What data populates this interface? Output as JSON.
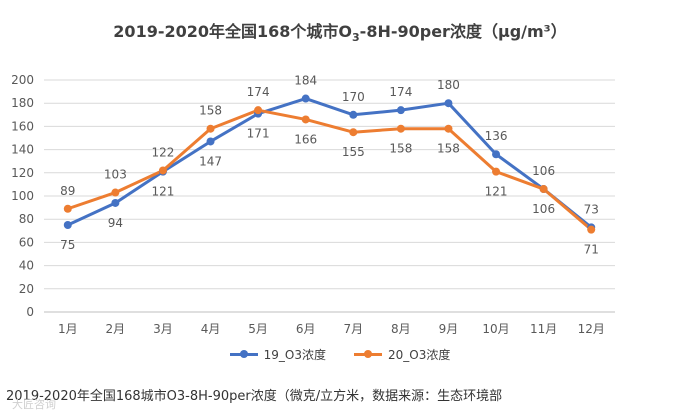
{
  "colors": {
    "series1": "#4472C4",
    "series2": "#ED7D31",
    "grid": "#D9D9D9",
    "axis": "#BFBFBF",
    "text": "#595959"
  },
  "chart_data": {
    "type": "line",
    "title": "2019-2020年全国168个城市O3-8H-90per浓度（μg/m³）",
    "title_parts": {
      "pre": "2019-2020年全国168个城市O",
      "sub": "3",
      "post": "-8H-90per浓度（μg/m³）"
    },
    "categories": [
      "1月",
      "2月",
      "3月",
      "4月",
      "5月",
      "6月",
      "7月",
      "8月",
      "9月",
      "10月",
      "11月",
      "12月"
    ],
    "series": [
      {
        "name": "19_O3浓度",
        "values": [
          75,
          94,
          121,
          147,
          171,
          184,
          170,
          174,
          180,
          136,
          106,
          73
        ],
        "label_pos": [
          "below",
          "below",
          "below",
          "below",
          "below",
          "above",
          "above",
          "above",
          "above",
          "above",
          "above",
          "above"
        ]
      },
      {
        "name": "20_O3浓度",
        "values": [
          89,
          103,
          122,
          158,
          174,
          166,
          155,
          158,
          158,
          121,
          106,
          71
        ],
        "label_pos": [
          "above",
          "above",
          "above",
          "above",
          "above",
          "below",
          "below",
          "below",
          "below",
          "below",
          "below",
          "below"
        ]
      }
    ],
    "ylim": [
      0,
      200
    ],
    "yticks": [
      0,
      20,
      40,
      60,
      80,
      100,
      120,
      140,
      160,
      180,
      200
    ],
    "grid": true,
    "legend": "bottom",
    "xlabel": "",
    "ylabel": ""
  },
  "caption": "2019-2020年全国168城市O3-8H-90per浓度（微克/立方米，数据来源：生态环境部",
  "watermark": "大匠咨询"
}
